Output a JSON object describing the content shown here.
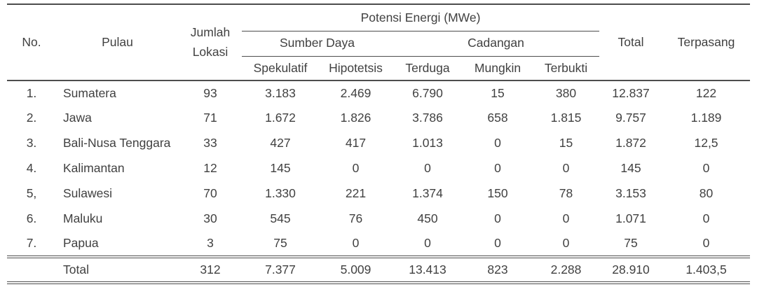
{
  "table": {
    "header": {
      "no": "No.",
      "pulau": "Pulau",
      "jumlah_lokasi": "Jumlah Lokasi",
      "potensi_group": "Potensi Energi (MWe)",
      "sumber_daya_group": "Sumber Daya",
      "cadangan_group": "Cadangan",
      "spekulatif": "Spekulatif",
      "hipotetsis": "Hipotetsis",
      "terduga": "Terduga",
      "mungkin": "Mungkin",
      "terbukti": "Terbukti",
      "total": "Total",
      "terpasang": "Terpasang"
    },
    "rows": [
      {
        "no": "1.",
        "pulau": "Sumatera",
        "jumlah": "93",
        "spekulatif": "3.183",
        "hipotetsis": "2.469",
        "terduga": "6.790",
        "mungkin": "15",
        "terbukti": "380",
        "total": "12.837",
        "terpasang": "122"
      },
      {
        "no": "2.",
        "pulau": "Jawa",
        "jumlah": "71",
        "spekulatif": "1.672",
        "hipotetsis": "1.826",
        "terduga": "3.786",
        "mungkin": "658",
        "terbukti": "1.815",
        "total": "9.757",
        "terpasang": "1.189"
      },
      {
        "no": "3.",
        "pulau": "Bali-Nusa Tenggara",
        "jumlah": "33",
        "spekulatif": "427",
        "hipotetsis": "417",
        "terduga": "1.013",
        "mungkin": "0",
        "terbukti": "15",
        "total": "1.872",
        "terpasang": "12,5"
      },
      {
        "no": "4.",
        "pulau": "Kalimantan",
        "jumlah": "12",
        "spekulatif": "145",
        "hipotetsis": "0",
        "terduga": "0",
        "mungkin": "0",
        "terbukti": "0",
        "total": "145",
        "terpasang": "0"
      },
      {
        "no": "5,",
        "pulau": "Sulawesi",
        "jumlah": "70",
        "spekulatif": "1.330",
        "hipotetsis": "221",
        "terduga": "1.374",
        "mungkin": "150",
        "terbukti": "78",
        "total": "3.153",
        "terpasang": "80"
      },
      {
        "no": "6.",
        "pulau": "Maluku",
        "jumlah": "30",
        "spekulatif": "545",
        "hipotetsis": "76",
        "terduga": "450",
        "mungkin": "0",
        "terbukti": "0",
        "total": "1.071",
        "terpasang": "0"
      },
      {
        "no": "7.",
        "pulau": "Papua",
        "jumlah": "3",
        "spekulatif": "75",
        "hipotetsis": "0",
        "terduga": "0",
        "mungkin": "0",
        "terbukti": "0",
        "total": "75",
        "terpasang": "0"
      }
    ],
    "total_row": {
      "label": "Total",
      "jumlah": "312",
      "spekulatif": "7.377",
      "hipotetsis": "5.009",
      "terduga": "13.413",
      "mungkin": "823",
      "terbukti": "2.288",
      "total": "28.910",
      "terpasang": "1.403,5"
    }
  },
  "colors": {
    "text": "#414141",
    "rule": "#4d4d4d",
    "background": "#ffffff"
  }
}
